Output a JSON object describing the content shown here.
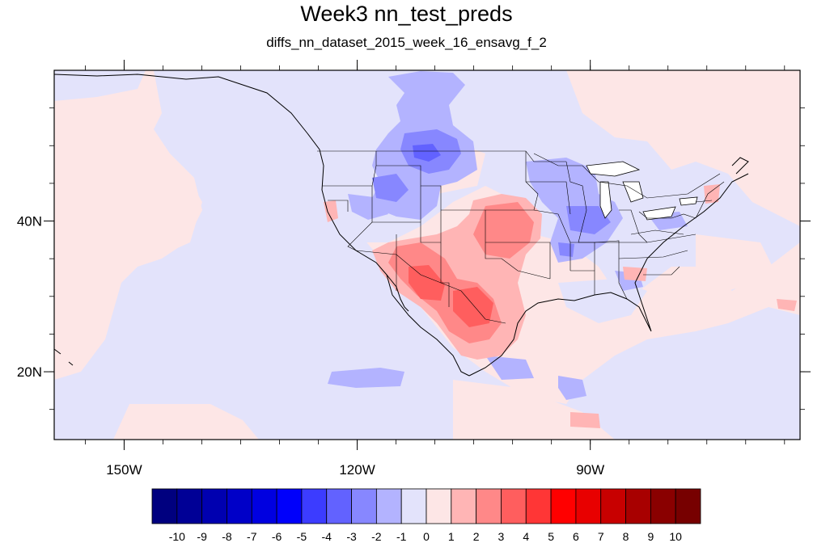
{
  "title": "Week3 nn_test_preds",
  "subtitle": "diffs_nn_dataset_2015_week_16_ensavg_f_2",
  "map": {
    "projection": "cylindrical-equidistant",
    "lon_range": [
      -159,
      -63
    ],
    "lat_range": [
      11,
      60
    ],
    "lon_ticks": [
      {
        "value": -150,
        "label": "150W"
      },
      {
        "value": -120,
        "label": "120W"
      },
      {
        "value": -90,
        "label": "90W"
      }
    ],
    "lat_ticks": [
      {
        "value": 40,
        "label": "40N"
      },
      {
        "value": 20,
        "label": "20N"
      }
    ],
    "background_color": "#fde6e6",
    "features": [
      "coastlines",
      "us-state-boundaries",
      "lakes"
    ]
  },
  "colorbar": {
    "labels": [
      "-10",
      "-9",
      "-8",
      "-7",
      "-6",
      "-5",
      "-4",
      "-3",
      "-2",
      "-1",
      "0",
      "1",
      "2",
      "3",
      "4",
      "5",
      "6",
      "7",
      "8",
      "9",
      "10"
    ],
    "colors": [
      "#00007f",
      "#000096",
      "#0000b0",
      "#0000c8",
      "#0000e0",
      "#0000fb",
      "#3c3cff",
      "#6262ff",
      "#8787ff",
      "#b3b3ff",
      "#e3e3fb",
      "#fde6e6",
      "#ffb5b5",
      "#ff8888",
      "#ff5e5e",
      "#ff3636",
      "#ff0000",
      "#e80000",
      "#c80000",
      "#a80000",
      "#8a0000",
      "#770000"
    ]
  }
}
